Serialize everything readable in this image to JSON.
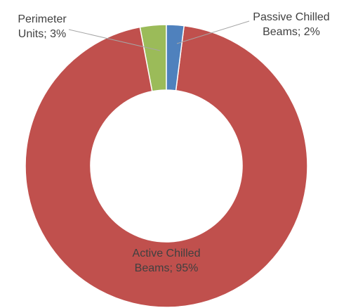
{
  "chart_data": {
    "type": "donut",
    "labels": [
      "Passive Chilled Beams; 2%",
      "Active Chilled Beams; 95%",
      "Perimeter Units; 3%"
    ],
    "values": [
      2,
      95,
      3
    ],
    "colors": [
      "#4f81bd",
      "#c0504d",
      "#9bbb59"
    ]
  }
}
